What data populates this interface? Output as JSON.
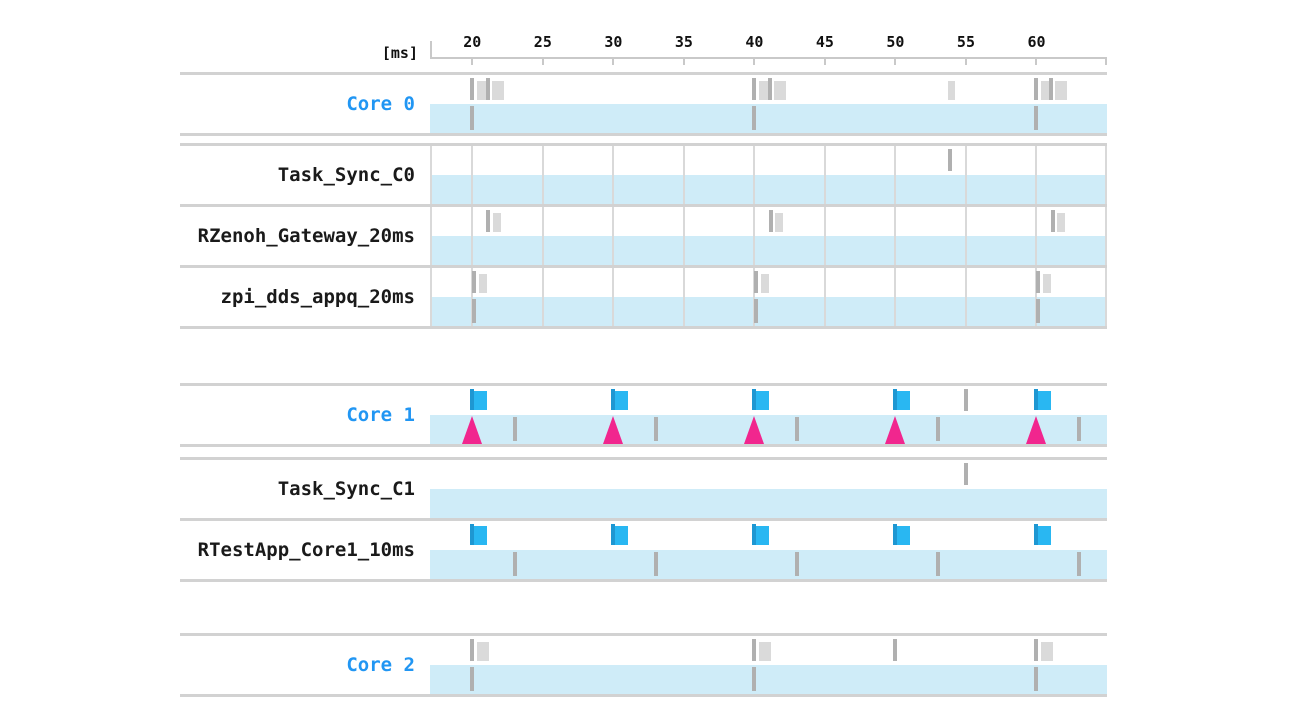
{
  "chart_data": {
    "type": "timeline",
    "title": "",
    "time_axis": {
      "unit_label": "[ms]",
      "tick_times_ms": [
        20,
        25,
        30,
        35,
        40,
        45,
        50,
        55,
        60
      ],
      "range_ms": [
        17,
        65
      ],
      "grid": "5ms gridlines on task rows of core 0 group only"
    },
    "rows": [
      {
        "id": "core0",
        "label": "Core 0",
        "kind": "core",
        "gridlines": false,
        "white_marks": [
          {
            "type": "tick",
            "t": 20.0
          },
          {
            "type": "slice",
            "t": 20.3,
            "dur": 0.8
          },
          {
            "type": "tick",
            "t": 21.1
          },
          {
            "type": "slice",
            "t": 21.4,
            "dur": 0.85
          },
          {
            "type": "tick",
            "t": 40.0
          },
          {
            "type": "slice",
            "t": 40.3,
            "dur": 0.8
          },
          {
            "type": "tick",
            "t": 41.1
          },
          {
            "type": "slice",
            "t": 41.4,
            "dur": 0.85
          },
          {
            "type": "slice",
            "t": 53.7,
            "dur": 0.55
          },
          {
            "type": "tick",
            "t": 60.0
          },
          {
            "type": "slice",
            "t": 60.3,
            "dur": 0.7
          },
          {
            "type": "tick",
            "t": 61.0
          },
          {
            "type": "slice",
            "t": 61.3,
            "dur": 0.85
          }
        ],
        "blue_marks": [
          {
            "type": "tick",
            "t": 20.0
          },
          {
            "type": "tick",
            "t": 40.0
          },
          {
            "type": "tick",
            "t": 60.0
          }
        ]
      },
      {
        "id": "task_sync_c0",
        "label": "Task_Sync_C0",
        "kind": "task",
        "gridlines": true,
        "white_marks": [
          {
            "type": "tick",
            "t": 53.7
          }
        ],
        "blue_marks": []
      },
      {
        "id": "rzenoh_gateway_20ms",
        "label": "RZenoh_Gateway_20ms",
        "kind": "task",
        "gridlines": true,
        "white_marks": [
          {
            "type": "tick",
            "t": 21.0
          },
          {
            "type": "slice",
            "t": 21.3,
            "dur": 0.6
          },
          {
            "type": "tick",
            "t": 41.0
          },
          {
            "type": "slice",
            "t": 41.3,
            "dur": 0.6
          },
          {
            "type": "tick",
            "t": 61.0
          },
          {
            "type": "slice",
            "t": 61.3,
            "dur": 0.6
          }
        ],
        "blue_marks": []
      },
      {
        "id": "zpi_dds_appq_20ms",
        "label": "zpi_dds_appq_20ms",
        "kind": "task",
        "gridlines": true,
        "white_marks": [
          {
            "type": "tick",
            "t": 20.0
          },
          {
            "type": "slice",
            "t": 20.3,
            "dur": 0.6
          },
          {
            "type": "tick",
            "t": 40.0
          },
          {
            "type": "slice",
            "t": 40.3,
            "dur": 0.6
          },
          {
            "type": "tick",
            "t": 60.0
          },
          {
            "type": "slice",
            "t": 60.3,
            "dur": 0.6
          }
        ],
        "blue_marks": [
          {
            "type": "tick",
            "t": 20.0
          },
          {
            "type": "tick",
            "t": 40.0
          },
          {
            "type": "tick",
            "t": 60.0
          }
        ]
      },
      {
        "id": "core1",
        "label": "Core 1",
        "kind": "core",
        "gridlines": false,
        "white_marks": [
          {
            "type": "flag",
            "t": 20.0
          },
          {
            "type": "flag",
            "t": 30.0
          },
          {
            "type": "flag",
            "t": 40.0
          },
          {
            "type": "flag",
            "t": 50.0
          },
          {
            "type": "tick",
            "t": 55.0
          },
          {
            "type": "flag",
            "t": 60.0
          }
        ],
        "blue_marks": [
          {
            "type": "triangle",
            "t": 20.0
          },
          {
            "type": "tick",
            "t": 23.0
          },
          {
            "type": "triangle",
            "t": 30.0
          },
          {
            "type": "tick",
            "t": 33.0
          },
          {
            "type": "triangle",
            "t": 40.0
          },
          {
            "type": "tick",
            "t": 43.0
          },
          {
            "type": "triangle",
            "t": 50.0
          },
          {
            "type": "tick",
            "t": 53.0
          },
          {
            "type": "triangle",
            "t": 60.0
          },
          {
            "type": "tick",
            "t": 63.0
          }
        ]
      },
      {
        "id": "task_sync_c1",
        "label": "Task_Sync_C1",
        "kind": "task",
        "gridlines": false,
        "white_marks": [
          {
            "type": "tick",
            "t": 55.0
          }
        ],
        "blue_marks": []
      },
      {
        "id": "rtestapp_core1_10ms",
        "label": "RTestApp_Core1_10ms",
        "kind": "task",
        "gridlines": false,
        "white_marks": [
          {
            "type": "flag",
            "t": 20.0
          },
          {
            "type": "flag",
            "t": 30.0
          },
          {
            "type": "flag",
            "t": 40.0
          },
          {
            "type": "flag",
            "t": 50.0
          },
          {
            "type": "flag",
            "t": 60.0
          }
        ],
        "blue_marks": [
          {
            "type": "tick",
            "t": 23.0
          },
          {
            "type": "tick",
            "t": 33.0
          },
          {
            "type": "tick",
            "t": 43.0
          },
          {
            "type": "tick",
            "t": 53.0
          },
          {
            "type": "tick",
            "t": 63.0
          }
        ]
      },
      {
        "id": "core2",
        "label": "Core 2",
        "kind": "core",
        "gridlines": false,
        "white_marks": [
          {
            "type": "tick",
            "t": 20.0
          },
          {
            "type": "slice",
            "t": 20.3,
            "dur": 0.9
          },
          {
            "type": "tick",
            "t": 40.0
          },
          {
            "type": "slice",
            "t": 40.3,
            "dur": 0.9
          },
          {
            "type": "tick",
            "t": 50.0
          },
          {
            "type": "tick",
            "t": 60.0
          },
          {
            "type": "slice",
            "t": 60.3,
            "dur": 0.9
          }
        ],
        "blue_marks": [
          {
            "type": "tick",
            "t": 20.0
          },
          {
            "type": "tick",
            "t": 40.0
          },
          {
            "type": "tick",
            "t": 60.0
          }
        ]
      }
    ]
  },
  "colors": {
    "core_label": "#2196f3",
    "task_label": "#1a1a1a",
    "band_fill": "#cfecf8",
    "slice_fill": "#dadada",
    "tick_fill": "#b0b0b0",
    "flag_bar": "#1e97d2",
    "flag_fill": "#29b7f2",
    "activation": "#f1268e",
    "grid_line": "#d9d9d9",
    "row_border": "#d2d2d2",
    "axis_line": "#c9c9c9",
    "axis_text": "#111111"
  }
}
